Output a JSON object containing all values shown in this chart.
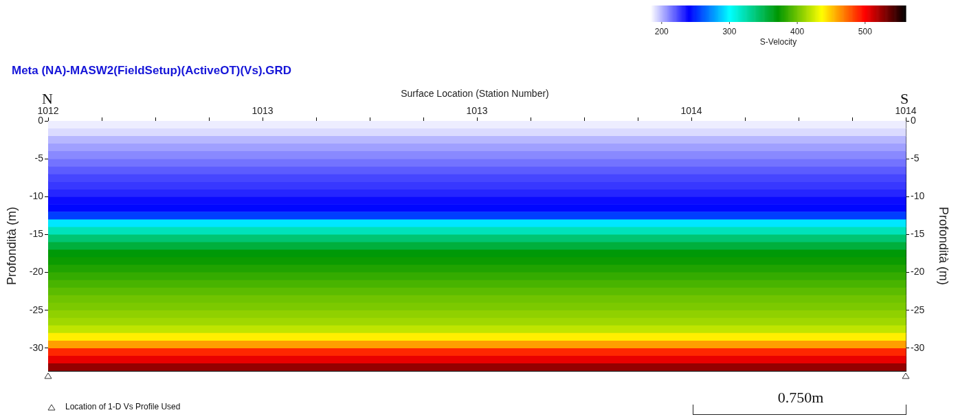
{
  "chart_data": {
    "type": "heatmap",
    "title": "Meta (NA)-MASW2(FieldSetup)(ActiveOT)(Vs).GRD",
    "x2label": "Surface Location (Station Number)",
    "ylabel": "Profondità (m)",
    "y2label": "Profondità (m)",
    "clabel": "S-Velocity",
    "annotations": [
      "N",
      "S",
      "Location of 1-D Vs Profile Used",
      "0.750m"
    ],
    "categories": [
      null
    ],
    "x2lim": [
      1012,
      1014
    ],
    "x2ticks": [
      {
        "value": 1012,
        "label": "1012"
      },
      {
        "value": 1012.125,
        "label": null
      },
      {
        "value": 1012.25,
        "label": null
      },
      {
        "value": 1012.375,
        "label": null
      },
      {
        "value": 1012.5,
        "label": "1013"
      },
      {
        "value": 1012.625,
        "label": null
      },
      {
        "value": 1012.75,
        "label": null
      },
      {
        "value": 1012.875,
        "label": null
      },
      {
        "value": 1013,
        "label": "1013"
      },
      {
        "value": 1013.125,
        "label": null
      },
      {
        "value": 1013.25,
        "label": null
      },
      {
        "value": 1013.375,
        "label": null
      },
      {
        "value": 1013.5,
        "label": "1014"
      },
      {
        "value": 1013.625,
        "label": null
      },
      {
        "value": 1013.75,
        "label": null
      },
      {
        "value": 1013.875,
        "label": null
      },
      {
        "value": 1014,
        "label": "1014"
      }
    ],
    "ylim": [
      -33,
      0
    ],
    "yticks": [
      0,
      -5,
      -10,
      -15,
      -20,
      -25,
      -30
    ],
    "y2lim": [
      -33,
      0
    ],
    "y2ticks": [
      0,
      -5,
      -10,
      -15,
      -20,
      -25,
      -30
    ],
    "clim": [
      184,
      560
    ],
    "cticks": [
      200,
      300,
      400,
      500
    ],
    "cells": [
      [
        188
      ],
      [
        192
      ],
      [
        200
      ],
      [
        205
      ],
      [
        210
      ],
      [
        215
      ],
      [
        220
      ],
      [
        225
      ],
      [
        228
      ],
      [
        232
      ],
      [
        238
      ],
      [
        242
      ],
      [
        255
      ],
      [
        295
      ],
      [
        320
      ],
      [
        340
      ],
      [
        355
      ],
      [
        370
      ],
      [
        375
      ],
      [
        380
      ],
      [
        385
      ],
      [
        390
      ],
      [
        395
      ],
      [
        400
      ],
      [
        403
      ],
      [
        408
      ],
      [
        412
      ],
      [
        420
      ],
      [
        440
      ],
      [
        460
      ],
      [
        490
      ],
      [
        505
      ],
      [
        525
      ]
    ]
  }
}
